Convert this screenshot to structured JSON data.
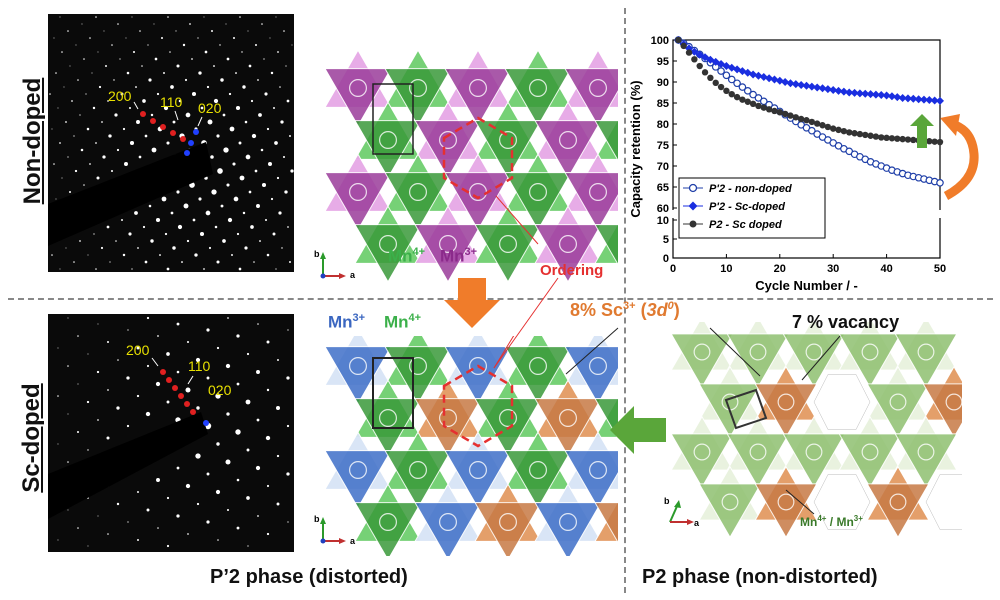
{
  "rows": {
    "top_label": "Non-doped",
    "bottom_label": "Sc-doped"
  },
  "saed": {
    "top": {
      "h200": "200",
      "h110": "110",
      "h020": "020"
    },
    "bottom": {
      "h200": "200",
      "h110": "110",
      "h020": "020"
    }
  },
  "structure": {
    "top": {
      "mn4": "Mn",
      "mn4_sup": "4+",
      "mn3": "Mn",
      "mn3_sup": "3+"
    },
    "bottom": {
      "mn3": "Mn",
      "mn3_sup": "3+",
      "mn4": "Mn",
      "mn4_sup": "4+"
    },
    "ordering_label": "Ordering",
    "axis_a": "a",
    "axis_b": "b"
  },
  "p2": {
    "sc_label": "8% Sc",
    "sc_sup": "3+",
    "sc_paren_open": " (",
    "sc_conf": "3d",
    "sc_conf_sup": "0",
    "sc_paren_close": ")",
    "vacancy_label": "7 % vacancy",
    "mn_label": "Mn",
    "mn_sup1": "4+",
    "mn_slash": " / Mn",
    "mn_sup2": "3+",
    "axis_a": "a",
    "axis_b": "b"
  },
  "phases": {
    "left": "P’2 phase (distorted)",
    "right": "P2 phase (non-distorted)"
  },
  "colors": {
    "mn4_green": "#6fcf6f",
    "mn3_purple": "#9b3d9b",
    "mn3_blue": "#3f6fc8",
    "sc_orange": "#e39a63",
    "p2_green": "#8fc070",
    "ordering_red": "#e53030",
    "arrow_orange": "#f07c2a",
    "arrow_green": "#5aa63a",
    "label_yellow": "#f2e600"
  },
  "chart_data": {
    "type": "scatter",
    "xlabel": "Cycle Number / -",
    "ylabel": "Capacity retention (%)",
    "xlim": [
      0,
      50
    ],
    "ylim_upper": [
      60,
      100
    ],
    "ylim_lower": [
      0,
      10
    ],
    "xticks": [
      0,
      10,
      20,
      30,
      40,
      50
    ],
    "yticks_upper": [
      60,
      65,
      70,
      75,
      80,
      85,
      90,
      95,
      100
    ],
    "yticks_lower": [
      0,
      5,
      10
    ],
    "legend_position": "bottom-left",
    "series": [
      {
        "name": "P'2 - non-doped",
        "color": "#1f3fa8",
        "marker": "open-circle",
        "x": [
          1,
          2,
          3,
          4,
          5,
          6,
          7,
          8,
          9,
          10,
          11,
          12,
          13,
          14,
          15,
          16,
          17,
          18,
          19,
          20,
          21,
          22,
          23,
          24,
          25,
          26,
          27,
          28,
          29,
          30,
          31,
          32,
          33,
          34,
          35,
          36,
          37,
          38,
          39,
          40,
          41,
          42,
          43,
          44,
          45,
          46,
          47,
          48,
          49,
          50
        ],
        "y": [
          100,
          99.2,
          98.4,
          97.5,
          96.6,
          95.6,
          94.6,
          93.6,
          92.6,
          91.6,
          90.6,
          89.7,
          88.8,
          87.9,
          87.0,
          86.2,
          85.4,
          84.6,
          83.8,
          83.0,
          82.2,
          81.4,
          80.6,
          79.8,
          79.1,
          78.4,
          77.6,
          76.9,
          76.2,
          75.5,
          74.8,
          74.1,
          73.5,
          72.8,
          72.2,
          71.6,
          71.0,
          70.5,
          70.0,
          69.5,
          69.0,
          68.6,
          68.2,
          67.8,
          67.5,
          67.2,
          66.9,
          66.6,
          66.3,
          66.0
        ]
      },
      {
        "name": "P'2 - Sc-doped",
        "color": "#1a2ee0",
        "marker": "filled-diamond",
        "x": [
          1,
          2,
          3,
          4,
          5,
          6,
          7,
          8,
          9,
          10,
          11,
          12,
          13,
          14,
          15,
          16,
          17,
          18,
          19,
          20,
          21,
          22,
          23,
          24,
          25,
          26,
          27,
          28,
          29,
          30,
          31,
          32,
          33,
          34,
          35,
          36,
          37,
          38,
          39,
          40,
          41,
          42,
          43,
          44,
          45,
          46,
          47,
          48,
          49,
          50
        ],
        "y": [
          100,
          99.0,
          98.0,
          97.2,
          96.5,
          95.9,
          95.3,
          94.8,
          94.3,
          93.8,
          93.4,
          93.0,
          92.6,
          92.2,
          91.8,
          91.5,
          91.2,
          90.9,
          90.6,
          90.3,
          90.0,
          89.7,
          89.5,
          89.3,
          89.1,
          88.9,
          88.7,
          88.5,
          88.3,
          88.1,
          87.9,
          87.7,
          87.5,
          87.4,
          87.3,
          87.2,
          87.1,
          87.0,
          86.9,
          86.8,
          86.6,
          86.4,
          86.2,
          86.1,
          86.0,
          85.9,
          85.8,
          85.7,
          85.6,
          85.5
        ]
      },
      {
        "name": "P2 - Sc doped",
        "color": "#333333",
        "marker": "filled-circle",
        "x": [
          1,
          2,
          3,
          4,
          5,
          6,
          7,
          8,
          9,
          10,
          11,
          12,
          13,
          14,
          15,
          16,
          17,
          18,
          19,
          20,
          21,
          22,
          23,
          24,
          25,
          26,
          27,
          28,
          29,
          30,
          31,
          32,
          33,
          34,
          35,
          36,
          37,
          38,
          39,
          40,
          41,
          42,
          43,
          44,
          45,
          46,
          47,
          48,
          49,
          50
        ],
        "y": [
          100,
          98.6,
          97.0,
          95.4,
          93.8,
          92.3,
          91.0,
          89.8,
          88.8,
          87.9,
          87.1,
          86.4,
          85.8,
          85.3,
          84.8,
          84.3,
          83.9,
          83.5,
          83.1,
          82.8,
          82.4,
          82.0,
          81.6,
          81.2,
          80.9,
          80.5,
          80.1,
          79.7,
          79.3,
          78.9,
          78.6,
          78.3,
          78.0,
          77.8,
          77.6,
          77.4,
          77.2,
          77.0,
          76.8,
          76.7,
          76.6,
          76.5,
          76.4,
          76.3,
          76.2,
          76.1,
          76.0,
          75.9,
          75.8,
          75.7
        ]
      }
    ]
  }
}
